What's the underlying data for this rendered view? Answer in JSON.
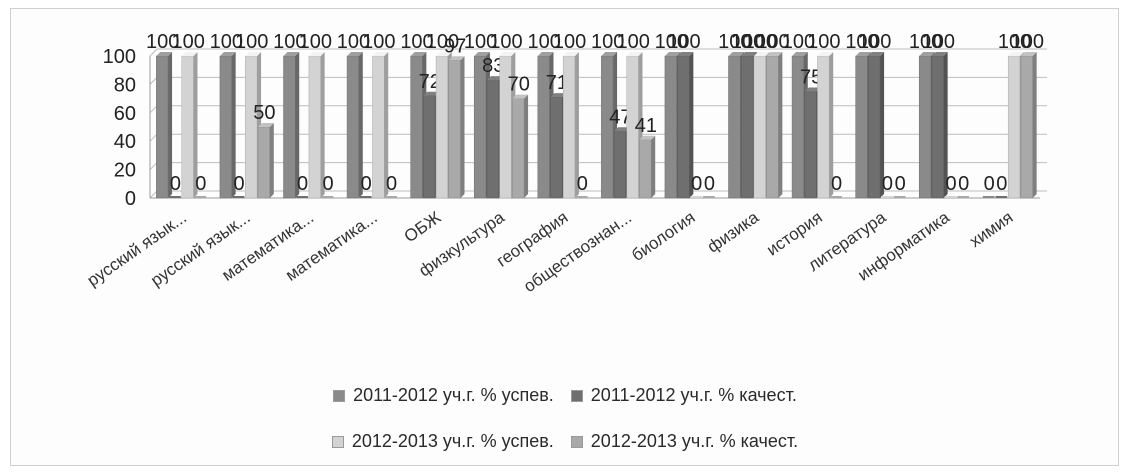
{
  "chart_data": {
    "type": "bar",
    "title": "",
    "xlabel": "",
    "ylabel": "",
    "ylim": [
      0,
      100
    ],
    "yticks": [
      "0",
      "20",
      "40",
      "60",
      "80",
      "100"
    ],
    "grid": true,
    "legend_position": "bottom",
    "categories": [
      "русский язык...",
      "русский язык...",
      "математика...",
      "математика...",
      "ОБЖ",
      "физкультура",
      "география",
      "обществознан...",
      "биология",
      "физика",
      "история",
      "литература",
      "информатика",
      "химия"
    ],
    "series": [
      {
        "name": "2011-2012 уч.г. % успев.",
        "color": "#8a8a8a",
        "values": [
          100,
          100,
          100,
          100,
          100,
          100,
          100,
          100,
          100,
          100,
          100,
          100,
          100,
          0
        ]
      },
      {
        "name": "2011-2012 уч.г. % качест.",
        "color": "#6f6f6f",
        "values": [
          0,
          0,
          0,
          0,
          72,
          83,
          71,
          47,
          100,
          100,
          75,
          100,
          100,
          0
        ]
      },
      {
        "name": "2012-2013 уч.г. % успев.",
        "color": "#d3d3d3",
        "values": [
          100,
          100,
          100,
          100,
          100,
          100,
          100,
          100,
          0,
          100,
          100,
          0,
          0,
          100
        ]
      },
      {
        "name": "2012-2013 уч.г. % качест.",
        "color": "#a9a9a9",
        "values": [
          0,
          50,
          0,
          0,
          97,
          70,
          0,
          41,
          0,
          100,
          0,
          0,
          0,
          100
        ]
      }
    ]
  }
}
